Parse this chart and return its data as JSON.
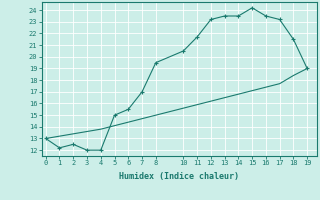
{
  "xlabel": "Humidex (Indice chaleur)",
  "line_color": "#1a7a6e",
  "bg_color": "#cceee8",
  "grid_major_color": "#ffffff",
  "curve_x": [
    0,
    1,
    2,
    3,
    4,
    5,
    6,
    7,
    8,
    10,
    11,
    12,
    13,
    14,
    15,
    16,
    17,
    18,
    19
  ],
  "curve_y": [
    13.0,
    12.2,
    12.5,
    12.0,
    12.0,
    15.0,
    15.5,
    17.0,
    19.5,
    20.5,
    21.7,
    23.2,
    23.5,
    23.5,
    24.2,
    23.5,
    23.2,
    21.5,
    19.0
  ],
  "line2_x": [
    0,
    1,
    2,
    3,
    4,
    5,
    6,
    7,
    8,
    10,
    11,
    12,
    13,
    14,
    15,
    16,
    17,
    18,
    19
  ],
  "line2_y": [
    13.0,
    13.2,
    13.4,
    13.6,
    13.8,
    14.1,
    14.4,
    14.7,
    15.0,
    15.6,
    15.9,
    16.2,
    16.5,
    16.8,
    17.1,
    17.4,
    17.7,
    18.4,
    19.0
  ],
  "ylim": [
    11.5,
    24.7
  ],
  "yticks": [
    12,
    13,
    14,
    15,
    16,
    17,
    18,
    19,
    20,
    21,
    22,
    23,
    24
  ],
  "xticks": [
    0,
    1,
    2,
    3,
    4,
    5,
    6,
    7,
    8,
    10,
    11,
    12,
    13,
    14,
    15,
    16,
    17,
    18,
    19
  ],
  "xlim": [
    -0.3,
    19.7
  ],
  "marker": "+"
}
